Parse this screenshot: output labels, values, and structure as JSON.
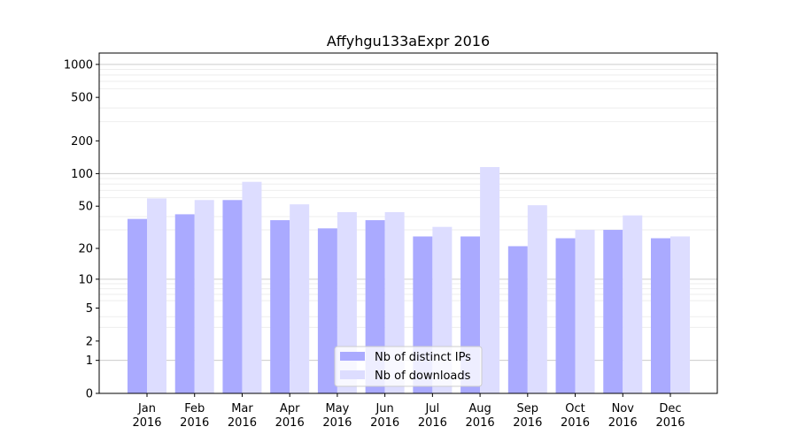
{
  "chart_data": {
    "type": "bar",
    "title": "Affyhgu133aExpr 2016",
    "xlabel": "",
    "ylabel": "",
    "yscale": "log10(1+y)",
    "ylim": [
      0,
      1270
    ],
    "yticks": [
      0,
      1,
      2,
      5,
      10,
      20,
      50,
      100,
      200,
      500,
      1000
    ],
    "grid": true,
    "legend_position": "lower-center",
    "categories": [
      "Jan\n2016",
      "Feb\n2016",
      "Mar\n2016",
      "Apr\n2016",
      "May\n2016",
      "Jun\n2016",
      "Jul\n2016",
      "Aug\n2016",
      "Sep\n2016",
      "Oct\n2016",
      "Nov\n2016",
      "Dec\n2016"
    ],
    "series": [
      {
        "name": "Nb of distinct IPs",
        "color": "#aaaaff",
        "values": [
          38,
          42,
          57,
          37,
          31,
          37,
          26,
          26,
          21,
          25,
          30,
          25
        ]
      },
      {
        "name": "Nb of downloads",
        "color": "#ddddff",
        "values": [
          59,
          57,
          84,
          52,
          44,
          44,
          32,
          115,
          51,
          30,
          41,
          26
        ]
      }
    ]
  }
}
